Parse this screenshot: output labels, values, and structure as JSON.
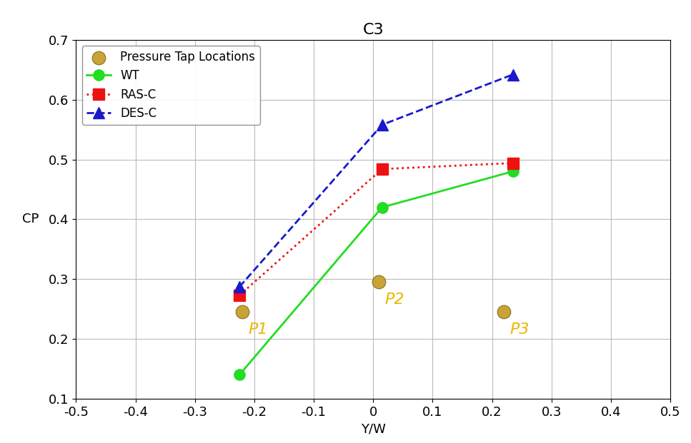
{
  "chart_data": {
    "type": "line",
    "title": "C3",
    "x_label": "Y/W",
    "y_label": "CP",
    "xlim": [
      -0.5,
      0.5
    ],
    "ylim": [
      0.1,
      0.7
    ],
    "xticks": [
      -0.5,
      -0.4,
      -0.3,
      -0.2,
      -0.1,
      0,
      0.1,
      0.2,
      0.3,
      0.4,
      0.5
    ],
    "yticks": [
      0.1,
      0.2,
      0.3,
      0.4,
      0.5,
      0.6,
      0.7
    ],
    "grid": true,
    "legend": "upper left",
    "series": [
      {
        "name": "Pressure Tap Locations",
        "type": "scatter",
        "color": "#c8a436",
        "marker": "o",
        "x": [
          -0.22,
          0.01,
          0.22
        ],
        "values": [
          0.245,
          0.295,
          0.245
        ],
        "point_labels": [
          "P1",
          "P2",
          "P3"
        ]
      },
      {
        "name": "WT",
        "type": "line",
        "color": "#22dd22",
        "marker": "o",
        "line_style": "solid",
        "x": [
          -0.225,
          0.015,
          0.235
        ],
        "values": [
          0.14,
          0.42,
          0.48
        ]
      },
      {
        "name": "RAS-C",
        "type": "line",
        "color": "#ee1111",
        "marker": "s",
        "line_style": "dotted",
        "x": [
          -0.225,
          0.015,
          0.235
        ],
        "values": [
          0.273,
          0.484,
          0.494
        ]
      },
      {
        "name": "DES-C",
        "type": "line",
        "color": "#1a1acc",
        "marker": "^",
        "line_style": "dashed",
        "x": [
          -0.225,
          0.015,
          0.235
        ],
        "values": [
          0.287,
          0.558,
          0.642
        ]
      }
    ]
  }
}
